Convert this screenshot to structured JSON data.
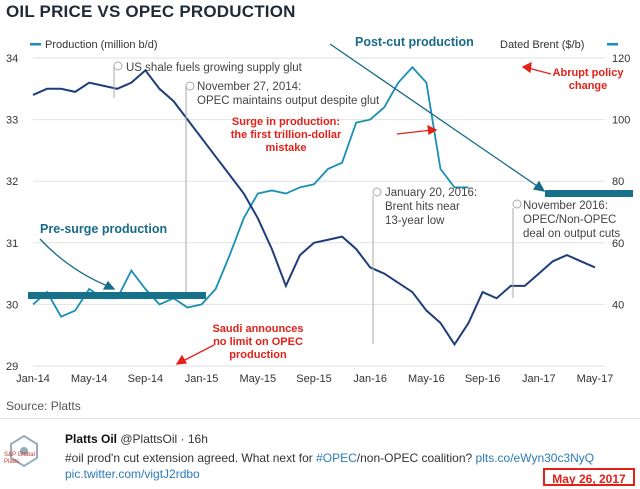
{
  "title": "OIL PRICE VS OPEC PRODUCTION",
  "source": "Source: Platts",
  "colors": {
    "production": "#1f3d7a",
    "brent": "#1a8fb5",
    "annotation_red": "#e32119",
    "callout_teal": "#1a6b8a",
    "bar_teal": "#17718a"
  },
  "chart_data": {
    "type": "line",
    "title": "OIL PRICE VS OPEC PRODUCTION",
    "x_labels": [
      "Jan-14",
      "May-14",
      "Sep-14",
      "Jan-15",
      "May-15",
      "Sep-15",
      "Jan-16",
      "May-16",
      "Sep-16",
      "Jan-17",
      "May-17"
    ],
    "x_range": [
      0,
      40
    ],
    "y_left": {
      "label": "Production (million b/d)",
      "range": [
        29,
        34
      ],
      "ticks": [
        29,
        30,
        31,
        32,
        33,
        34
      ]
    },
    "y_right": {
      "label": "Dated Brent ($/b)",
      "range": [
        20,
        120
      ],
      "ticks": [
        "",
        "40",
        "60",
        "80",
        "100",
        "120"
      ],
      "tick_values": [
        20,
        40,
        60,
        80,
        100,
        120
      ]
    },
    "series": [
      {
        "name": "Production (million b/d)",
        "axis": "left",
        "points": [
          [
            0,
            33.4
          ],
          [
            1,
            33.5
          ],
          [
            2,
            33.5
          ],
          [
            3,
            33.45
          ],
          [
            4,
            33.6
          ],
          [
            5,
            33.55
          ],
          [
            6,
            33.5
          ],
          [
            7,
            33.6
          ],
          [
            8,
            33.8
          ],
          [
            9,
            33.5
          ],
          [
            10,
            33.3
          ],
          [
            11,
            33.0
          ],
          [
            12,
            32.7
          ],
          [
            13,
            32.4
          ],
          [
            14,
            32.1
          ],
          [
            15,
            31.8
          ],
          [
            16,
            31.4
          ],
          [
            17,
            30.9
          ],
          [
            18,
            30.3
          ],
          [
            19,
            30.8
          ],
          [
            20,
            31.0
          ],
          [
            21,
            31.05
          ],
          [
            22,
            31.1
          ],
          [
            23,
            30.9
          ],
          [
            24,
            30.6
          ],
          [
            25,
            30.5
          ],
          [
            26,
            30.35
          ],
          [
            27,
            30.2
          ],
          [
            28,
            29.9
          ],
          [
            29,
            29.7
          ],
          [
            30,
            29.35
          ],
          [
            31,
            29.7
          ],
          [
            32,
            30.2
          ],
          [
            33,
            30.1
          ],
          [
            34,
            30.3
          ],
          [
            35,
            30.3
          ],
          [
            36,
            30.5
          ],
          [
            37,
            30.7
          ],
          [
            38,
            30.8
          ],
          [
            39,
            30.7
          ],
          [
            40,
            30.6
          ]
        ]
      },
      {
        "name": "Dated Brent ($/b)",
        "axis": "right",
        "points": [
          [
            0,
            40
          ],
          [
            1,
            44
          ],
          [
            2,
            36
          ],
          [
            3,
            38
          ],
          [
            4,
            45
          ],
          [
            5,
            42
          ],
          [
            6,
            42
          ],
          [
            7,
            51
          ],
          [
            8,
            45
          ],
          [
            9,
            40
          ],
          [
            10,
            42
          ],
          [
            11,
            39
          ],
          [
            12,
            40
          ],
          [
            13,
            45
          ],
          [
            14,
            56
          ],
          [
            15,
            68
          ],
          [
            16,
            76
          ],
          [
            17,
            77
          ],
          [
            18,
            76
          ],
          [
            19,
            78
          ],
          [
            20,
            79
          ],
          [
            21,
            84
          ],
          [
            22,
            86
          ],
          [
            23,
            99
          ],
          [
            24,
            100
          ],
          [
            25,
            104
          ],
          [
            26,
            112
          ],
          [
            27,
            117
          ],
          [
            28,
            112
          ],
          [
            29,
            84
          ],
          [
            30,
            78
          ],
          [
            31,
            78
          ]
        ],
        "note": "teal annotation path showing dated Brent trend (x in months from Jan-14)"
      }
    ],
    "legend": [
      {
        "label": "Production (million b/d)",
        "position": "top-left"
      },
      {
        "label": "Dated Brent ($/b)",
        "position": "top-right"
      }
    ],
    "annotations_gray": [
      {
        "text": "US shale fuels growing supply glut"
      },
      {
        "line1": "November 27, 2014:",
        "line2": "OPEC maintains output despite glut"
      },
      {
        "line1": "January 20, 2016:",
        "line2": "Brent hits near",
        "line3": "13-year low"
      },
      {
        "line1": "November 2016:",
        "line2": "OPEC/Non-OPEC",
        "line3": "deal on output cuts"
      }
    ],
    "annotations_red": [
      {
        "line1": "Surge in production:",
        "line2": "the first trillion-dollar",
        "line3": "mistake"
      },
      {
        "line1": "Abrupt policy",
        "line2": "change"
      },
      {
        "line1": "Saudi announces",
        "line2": "no limit on OPEC",
        "line3": "production"
      }
    ],
    "annotations_teal": [
      {
        "text": "Pre-surge production"
      },
      {
        "text": "Post-cut production"
      }
    ]
  },
  "tweet": {
    "user": "Platts Oil",
    "handle": "@PlattsOil · 16h",
    "body_prefix": "#oil prod'n cut extension agreed. What next for ",
    "hashtag": "#OPEC",
    "body_mid": "/non-OPEC coalition? ",
    "link1": "plts.co/eWyn30c3NyQ",
    "link2": "pic.twitter.com/vigtJ2rdbo",
    "logo_text_1": "S&P Global",
    "logo_text_2": "Platts"
  },
  "date_badge": "May 26, 2017"
}
